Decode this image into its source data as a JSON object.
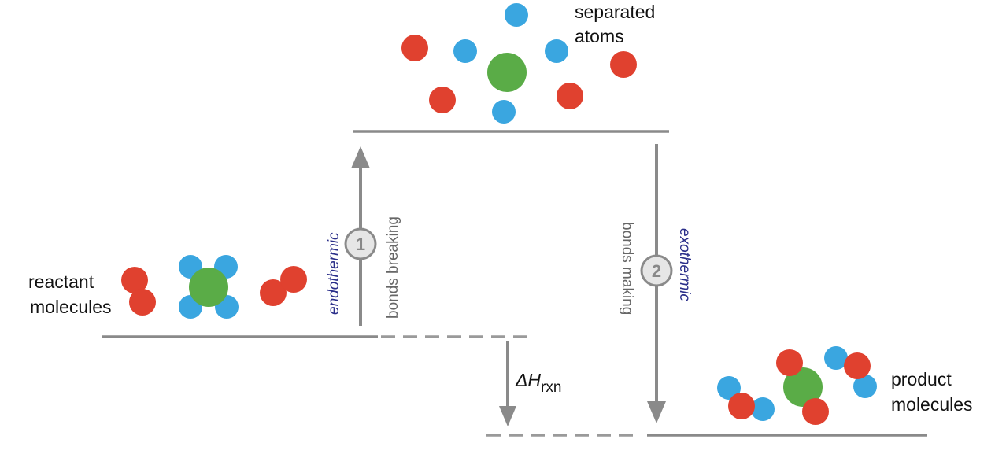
{
  "labels": {
    "separated_line1": "separated",
    "separated_line2": "atoms",
    "reactant_line1": "reactant",
    "reactant_line2": "molecules",
    "product_line1": "product",
    "product_line2": "molecules",
    "delta_h_symbol": "ΔH",
    "delta_h_subscript": "rxn"
  },
  "steps": [
    {
      "number": "1",
      "process": "bonds breaking",
      "energy": "endothermic"
    },
    {
      "number": "2",
      "process": "bonds making",
      "energy": "exothermic"
    }
  ],
  "colors": {
    "oxygen_red": "#e0412f",
    "hydrogen_blue": "#3aa6e0",
    "carbon_green": "#5aac47",
    "line_gray": "#8a8a8a",
    "italic_navy": "#2b2f8a"
  }
}
